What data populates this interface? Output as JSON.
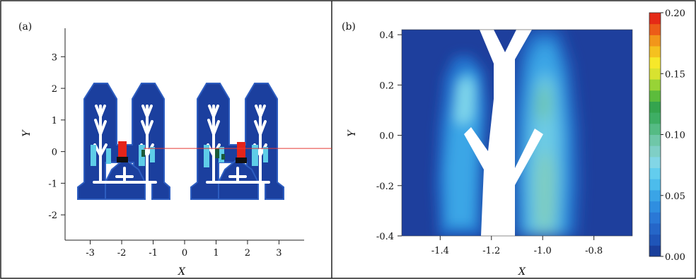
{
  "chart_data": [
    {
      "type": "heatmap",
      "panel_label": "(a)",
      "xlabel": "X",
      "ylabel": "Y",
      "xlim": [
        -3.8,
        3.8
      ],
      "ylim": [
        -2.8,
        3.9
      ],
      "xticks": [
        "-3",
        "-2",
        "-1",
        "0",
        "1",
        "2",
        "3"
      ],
      "xtick_values": [
        -3,
        -2,
        -1,
        0,
        1,
        2,
        3
      ],
      "yticks": [
        "3",
        "2",
        "1",
        "0",
        "-1",
        "-2"
      ],
      "ytick_values": [
        3,
        2,
        1,
        0,
        -1,
        -2
      ],
      "grid": false,
      "section_line_y": 0.1,
      "section_line_color": "#e53935"
    },
    {
      "type": "heatmap",
      "panel_label": "(b)",
      "xlabel": "X",
      "ylabel": "Y",
      "xlim": [
        -1.55,
        -0.65
      ],
      "ylim": [
        -0.4,
        0.42
      ],
      "xticks": [
        "-1.4",
        "-1.2",
        "-1.0",
        "-0.8"
      ],
      "xtick_values": [
        -1.4,
        -1.2,
        -1.0,
        -0.8
      ],
      "yticks": [
        "0.4",
        "0.2",
        "0.0",
        "-0.2",
        "-0.4"
      ],
      "ytick_values": [
        0.4,
        0.2,
        0.0,
        -0.2,
        -0.4
      ],
      "grid": false,
      "colorbar": {
        "min": 0.0,
        "max": 0.2,
        "tick_labels": [
          "0.20",
          "0.15",
          "0.10",
          "0.05",
          "0.00"
        ],
        "tick_values": [
          0.2,
          0.15,
          0.1,
          0.05,
          0.0
        ],
        "colors": [
          "#1a3f9c",
          "#1f55b8",
          "#2566c8",
          "#2a78d6",
          "#2f8ee0",
          "#3aa4e6",
          "#4cbcec",
          "#63cdee",
          "#82d6e6",
          "#7fcfc6",
          "#6fc7a8",
          "#55bb84",
          "#3eae64",
          "#34a44e",
          "#5cbc3c",
          "#98d336",
          "#d8e230",
          "#f6e82a",
          "#f5c11f",
          "#f2961a",
          "#ec5c18",
          "#e52a16"
        ]
      }
    }
  ]
}
